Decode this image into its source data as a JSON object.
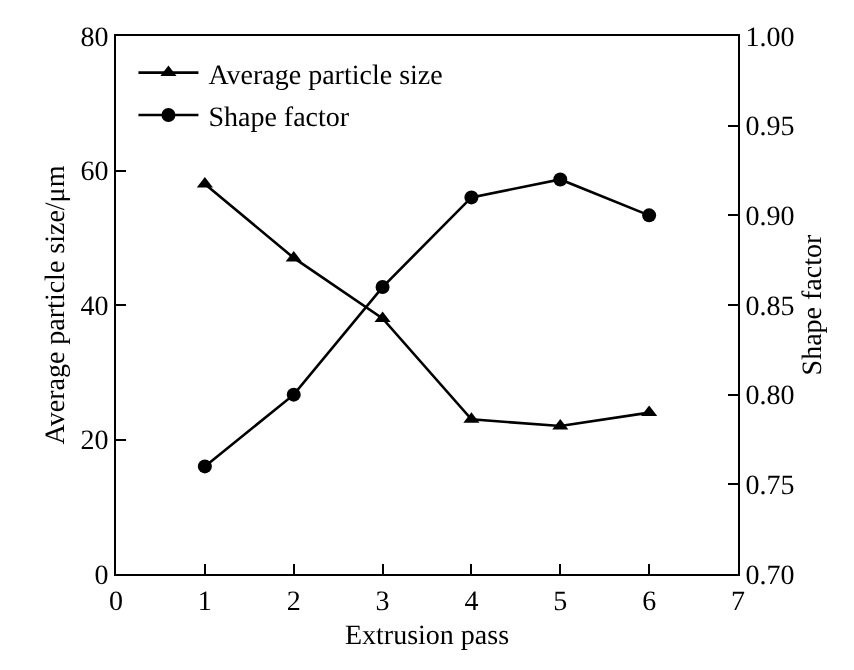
{
  "chart_data": {
    "type": "line",
    "xlabel": "Extrusion pass",
    "ylabel": "Average particle size/μm",
    "y2label": "Shape factor",
    "x": [
      1,
      2,
      3,
      4,
      5,
      6
    ],
    "series": [
      {
        "name": "Average particle size",
        "color": "#000000",
        "values": [
          58,
          47,
          38,
          23,
          22,
          24
        ],
        "marker": "triangle"
      },
      {
        "name": "Shape factor",
        "color": "#000000",
        "values": [
          0.76,
          0.8,
          0.86,
          0.91,
          0.92,
          0.9
        ],
        "marker": "circle",
        "axis": "y2"
      }
    ],
    "xlim": [
      0,
      7
    ],
    "xticks": [
      0,
      1,
      2,
      3,
      4,
      5,
      6,
      7
    ],
    "ylim": [
      0,
      80
    ],
    "yticks": [
      0,
      20,
      40,
      60,
      80
    ],
    "y2lim": [
      0.7,
      1.0
    ],
    "y2ticks": [
      {
        "value": 0.7,
        "label": "0.70"
      },
      {
        "value": 0.75,
        "label": "0.75"
      },
      {
        "value": 0.8,
        "label": "0.80"
      },
      {
        "value": 0.85,
        "label": "0.85"
      },
      {
        "value": 0.9,
        "label": "0.90"
      },
      {
        "value": 0.95,
        "label": "0.95"
      },
      {
        "value": 1.0,
        "label": "1.00"
      }
    ],
    "legend": "top left",
    "line_style": "solid"
  }
}
